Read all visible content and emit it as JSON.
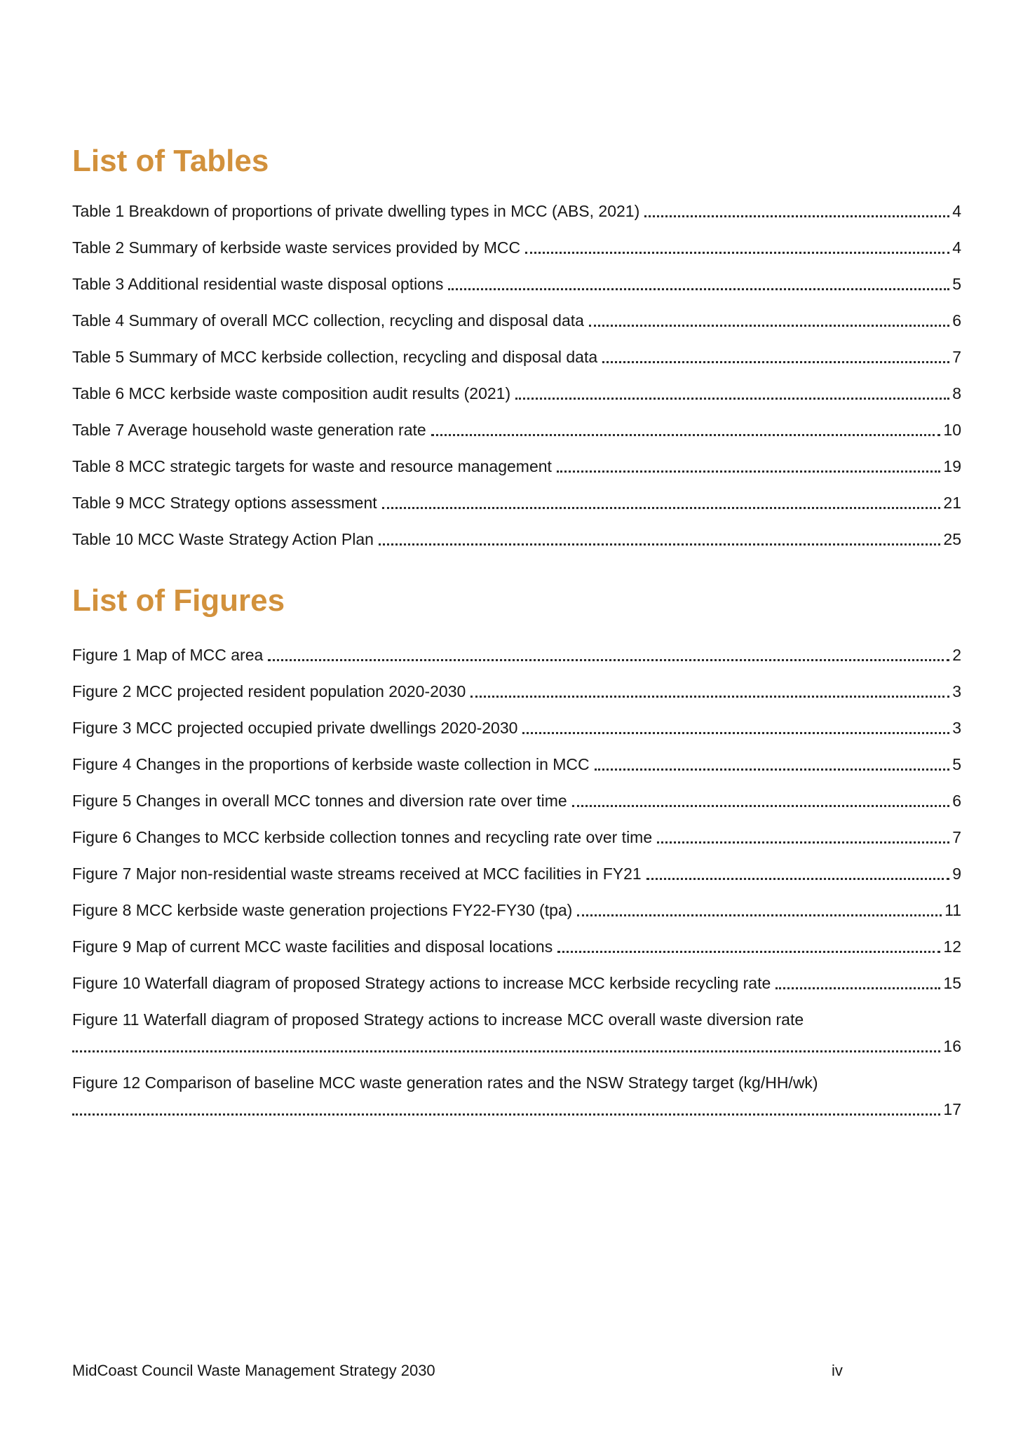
{
  "list_of_tables": {
    "heading": "List of Tables",
    "entries": [
      {
        "label": "Table 1 Breakdown of proportions of private dwelling types in MCC (ABS, 2021)",
        "page": "4"
      },
      {
        "label": "Table 2 Summary of kerbside waste services provided by MCC",
        "page": "4"
      },
      {
        "label": "Table 3 Additional residential waste disposal options",
        "page": "5"
      },
      {
        "label": "Table 4 Summary of overall MCC collection, recycling and disposal data",
        "page": "6"
      },
      {
        "label": "Table 5 Summary of MCC kerbside collection, recycling and disposal data",
        "page": "7"
      },
      {
        "label": "Table 6 MCC kerbside waste composition audit results (2021)",
        "page": "8"
      },
      {
        "label": "Table 7 Average household waste generation rate",
        "page": "10"
      },
      {
        "label": "Table 8 MCC strategic targets for waste and resource management",
        "page": "19"
      },
      {
        "label": "Table 9 MCC Strategy options assessment",
        "page": "21"
      },
      {
        "label": "Table 10 MCC Waste Strategy Action Plan",
        "page": "25"
      }
    ]
  },
  "list_of_figures": {
    "heading": "List of Figures",
    "entries": [
      {
        "label": "Figure 1 Map of MCC area",
        "page": "2"
      },
      {
        "label": "Figure 2 MCC projected resident population 2020-2030",
        "page": "3"
      },
      {
        "label": "Figure 3 MCC projected occupied private dwellings 2020-2030",
        "page": "3"
      },
      {
        "label": "Figure 4 Changes in the proportions of kerbside waste collection in MCC",
        "page": "5"
      },
      {
        "label": "Figure 5 Changes in overall MCC tonnes and diversion rate over time",
        "page": "6"
      },
      {
        "label": "Figure 6 Changes to MCC kerbside collection tonnes and recycling rate over time",
        "page": "7"
      },
      {
        "label": "Figure 7 Major non-residential waste streams received at MCC facilities in FY21",
        "page": "9"
      },
      {
        "label": "Figure 8 MCC kerbside waste generation projections FY22-FY30 (tpa)",
        "page": "11"
      },
      {
        "label": "Figure 9 Map of current MCC waste facilities and disposal locations",
        "page": "12"
      },
      {
        "label": "Figure 10 Waterfall diagram of proposed Strategy actions to increase MCC kerbside recycling rate",
        "page": "15"
      },
      {
        "label": "Figure 11 Waterfall diagram of proposed Strategy actions to increase MCC overall waste diversion rate",
        "page": "16"
      },
      {
        "label": "Figure 12 Comparison of baseline MCC waste generation rates and the NSW Strategy target (kg/HH/wk)",
        "page": "17"
      }
    ]
  },
  "footer": {
    "left_text": "MidCoast Council Waste Management Strategy 2030",
    "page_number": "iv"
  }
}
